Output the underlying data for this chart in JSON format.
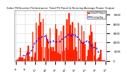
{
  "title": "Solar PV/Inverter Performance  Total PV Panel & Running Average Power Output",
  "bg_color": "#ffffff",
  "plot_bg": "#ffffff",
  "grid_color": "#cccccc",
  "bar_color": "#ff2200",
  "bar_edge_color": "#cc0000",
  "avg_color": "#0000ff",
  "ylabel_right": [
    "1000",
    "2000",
    "3000",
    "4000",
    "5000"
  ],
  "ylim": [
    0,
    5500
  ],
  "n_bars": 80,
  "legend_labels": [
    "Total PV Power",
    "Running Avg"
  ],
  "legend_colors": [
    "#ff2200",
    "#0000ff"
  ]
}
